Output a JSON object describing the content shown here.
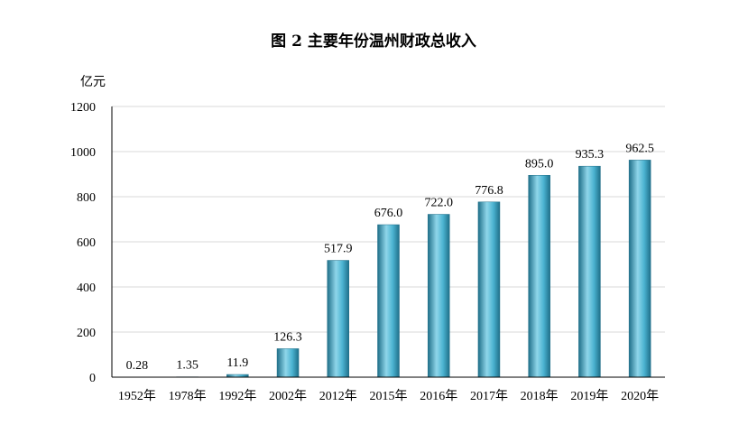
{
  "chart_data": {
    "type": "bar",
    "title": "图 2   主要年份温州财政总收入",
    "ylabel": "亿元",
    "xlabel": "",
    "categories": [
      "1952年",
      "1978年",
      "1992年",
      "2002年",
      "2012年",
      "2015年",
      "2016年",
      "2017年",
      "2018年",
      "2019年",
      "2020年"
    ],
    "values": [
      0.28,
      1.35,
      11.9,
      126.3,
      517.9,
      676.0,
      722.0,
      776.8,
      895.0,
      935.3,
      962.5
    ],
    "value_labels": [
      "0.28",
      "1.35",
      "11.9",
      "126.3",
      "517.9",
      "676.0",
      "722.0",
      "776.8",
      "895.0",
      "935.3",
      "962.5"
    ],
    "ylim": [
      0,
      1200
    ],
    "yticks": [
      "0",
      "200",
      "400",
      "600",
      "800",
      "1000",
      "1200"
    ],
    "grid": true,
    "legend": "none",
    "colors": {
      "bar_dark": "#1f6f89",
      "bar_mid": "#4bb3d1",
      "bar_light": "#8fd6ea"
    }
  }
}
